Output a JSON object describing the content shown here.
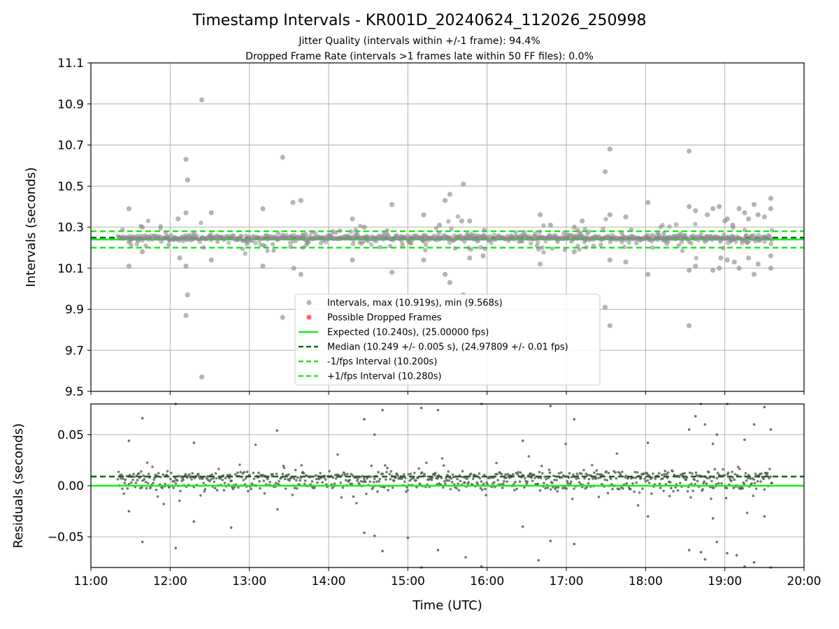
{
  "title": "Timestamp Intervals - KR001D_20240624_112026_250998",
  "subtitle_1": "Jitter Quality (intervals within +/-1 frame): 94.4%",
  "subtitle_2": "Dropped Frame Rate (intervals >1 frames late within 50 FF files): 0.0%",
  "colors": {
    "scatter": "#8c8c8c",
    "dropped": "#ff4040",
    "expected": "#1aeb1a",
    "median": "#0a6b0a",
    "bounds": "#1aeb1a",
    "grid": "#b0b0b0"
  },
  "chart_data": [
    {
      "type": "scatter",
      "ylabel": "Intervals (seconds)",
      "xlabel": "",
      "xlim": [
        11.0,
        20.0
      ],
      "ylim": [
        9.5,
        11.1
      ],
      "yticks": [
        "9.5",
        "9.7",
        "9.9",
        "10.1",
        "10.3",
        "10.5",
        "10.7",
        "10.9",
        "11.1"
      ],
      "grid": true,
      "legend_position": "bottom-center",
      "legend": [
        {
          "label": "Intervals, max (10.919s), min (9.568s)",
          "kind": "marker",
          "color": "#8c8c8c"
        },
        {
          "label": "Possible Dropped Frames",
          "kind": "marker",
          "color": "#ff4040"
        },
        {
          "label": "Expected (10.240s), (25.00000 fps)",
          "kind": "solid",
          "color": "#1aeb1a"
        },
        {
          "label": "Median (10.249 +/- 0.005 s), (24.97809 +/- 0.01 fps)",
          "kind": "dashed",
          "color": "#0a6b0a"
        },
        {
          "label": "-1/fps Interval (10.200s)",
          "kind": "dashed",
          "color": "#1aeb1a"
        },
        {
          "label": "+1/fps Interval (10.280s)",
          "kind": "dashed",
          "color": "#1aeb1a"
        }
      ],
      "reference_lines": {
        "expected": 10.24,
        "median": 10.249,
        "minus_bound": 10.2,
        "plus_bound": 10.28
      },
      "data_range": {
        "start": 11.34,
        "end": 19.6
      },
      "outliers": [
        [
          11.48,
          10.39
        ],
        [
          11.48,
          10.11
        ],
        [
          11.65,
          10.3
        ],
        [
          11.65,
          10.18
        ],
        [
          12.1,
          10.34
        ],
        [
          12.12,
          10.15
        ],
        [
          12.2,
          10.37
        ],
        [
          12.2,
          10.63
        ],
        [
          12.22,
          10.53
        ],
        [
          12.22,
          9.97
        ],
        [
          12.2,
          9.87
        ],
        [
          12.2,
          10.11
        ],
        [
          12.3,
          10.27
        ],
        [
          12.4,
          10.92
        ],
        [
          12.4,
          9.57
        ],
        [
          12.52,
          10.37
        ],
        [
          12.52,
          10.14
        ],
        [
          13.17,
          10.39
        ],
        [
          13.17,
          10.11
        ],
        [
          13.42,
          10.64
        ],
        [
          13.42,
          9.86
        ],
        [
          13.55,
          10.42
        ],
        [
          13.56,
          10.1
        ],
        [
          13.65,
          10.43
        ],
        [
          13.65,
          10.07
        ],
        [
          14.3,
          10.34
        ],
        [
          14.3,
          10.14
        ],
        [
          14.45,
          10.3
        ],
        [
          14.8,
          10.41
        ],
        [
          14.8,
          10.08
        ],
        [
          15.2,
          10.36
        ],
        [
          15.2,
          10.14
        ],
        [
          15.4,
          10.31
        ],
        [
          15.47,
          10.43
        ],
        [
          15.47,
          10.07
        ],
        [
          15.53,
          10.46
        ],
        [
          15.53,
          10.03
        ],
        [
          15.7,
          10.51
        ],
        [
          15.7,
          9.97
        ],
        [
          15.68,
          10.33
        ],
        [
          15.78,
          10.33
        ],
        [
          15.78,
          10.15
        ],
        [
          15.95,
          10.16
        ],
        [
          16.67,
          10.36
        ],
        [
          16.67,
          10.12
        ],
        [
          16.8,
          10.31
        ],
        [
          17.1,
          10.3
        ],
        [
          17.1,
          10.18
        ],
        [
          17.2,
          10.33
        ],
        [
          17.49,
          10.57
        ],
        [
          17.49,
          9.91
        ],
        [
          17.55,
          10.68
        ],
        [
          17.55,
          9.82
        ],
        [
          17.55,
          10.36
        ],
        [
          17.55,
          10.14
        ],
        [
          17.75,
          10.35
        ],
        [
          17.75,
          10.13
        ],
        [
          18.03,
          10.42
        ],
        [
          18.03,
          10.07
        ],
        [
          18.55,
          10.67
        ],
        [
          18.55,
          9.82
        ],
        [
          18.55,
          10.4
        ],
        [
          18.55,
          10.09
        ],
        [
          18.63,
          10.38
        ],
        [
          18.63,
          10.11
        ],
        [
          18.78,
          10.36
        ],
        [
          18.85,
          10.39
        ],
        [
          18.85,
          10.09
        ],
        [
          18.93,
          10.4
        ],
        [
          18.93,
          10.1
        ],
        [
          19.03,
          10.34
        ],
        [
          19.03,
          10.14
        ],
        [
          19.1,
          10.31
        ],
        [
          19.18,
          10.39
        ],
        [
          19.18,
          10.1
        ],
        [
          19.25,
          10.37
        ],
        [
          19.3,
          10.34
        ],
        [
          19.3,
          10.15
        ],
        [
          19.37,
          10.41
        ],
        [
          19.37,
          10.07
        ],
        [
          19.42,
          10.36
        ],
        [
          19.42,
          10.12
        ],
        [
          19.5,
          10.35
        ],
        [
          19.58,
          10.44
        ],
        [
          19.58,
          10.1
        ],
        [
          19.58,
          10.39
        ],
        [
          19.58,
          10.16
        ],
        [
          18.95,
          10.15
        ],
        [
          19.12,
          10.13
        ],
        [
          19.0,
          10.33
        ]
      ]
    },
    {
      "type": "scatter",
      "ylabel": "Residuals (seconds)",
      "xlabel": "Time (UTC)",
      "xlim": [
        11.0,
        20.0
      ],
      "ylim": [
        -0.08,
        0.08
      ],
      "xticks": [
        "11:00",
        "12:00",
        "13:00",
        "14:00",
        "15:00",
        "16:00",
        "17:00",
        "18:00",
        "19:00",
        "20:00"
      ],
      "yticks": [
        "−0.05",
        "0.00",
        "0.05"
      ],
      "grid": true,
      "reference_lines": {
        "zero": 0.0,
        "median_offset": 0.009
      },
      "outliers": [
        [
          11.48,
          0.044
        ],
        [
          11.48,
          -0.025
        ],
        [
          11.65,
          0.066
        ],
        [
          11.65,
          -0.055
        ],
        [
          12.07,
          0.08
        ],
        [
          12.07,
          -0.061
        ],
        [
          12.3,
          0.042
        ],
        [
          12.3,
          -0.035
        ],
        [
          12.77,
          -0.041
        ],
        [
          13.35,
          0.054
        ],
        [
          14.45,
          0.065
        ],
        [
          14.45,
          -0.046
        ],
        [
          14.58,
          0.05
        ],
        [
          14.58,
          -0.049
        ],
        [
          14.68,
          0.074
        ],
        [
          14.68,
          -0.064
        ],
        [
          15.0,
          -0.051
        ],
        [
          15.17,
          0.076
        ],
        [
          15.17,
          -0.08
        ],
        [
          15.38,
          0.074
        ],
        [
          15.38,
          -0.063
        ],
        [
          15.73,
          -0.07
        ],
        [
          15.93,
          0.08
        ],
        [
          15.93,
          -0.079
        ],
        [
          16.45,
          0.044
        ],
        [
          16.45,
          -0.04
        ],
        [
          16.65,
          -0.073
        ],
        [
          16.8,
          0.078
        ],
        [
          16.8,
          -0.054
        ],
        [
          17.1,
          0.065
        ],
        [
          17.1,
          -0.057
        ],
        [
          18.03,
          0.042
        ],
        [
          18.03,
          -0.03
        ],
        [
          18.55,
          0.055
        ],
        [
          18.55,
          -0.063
        ],
        [
          18.63,
          0.068
        ],
        [
          18.7,
          0.08
        ],
        [
          18.7,
          -0.065
        ],
        [
          18.75,
          0.06
        ],
        [
          18.75,
          -0.072
        ],
        [
          18.85,
          0.041
        ],
        [
          18.85,
          -0.032
        ],
        [
          18.9,
          0.05
        ],
        [
          18.9,
          -0.055
        ],
        [
          19.03,
          0.08
        ],
        [
          19.03,
          -0.066
        ],
        [
          19.15,
          -0.068
        ],
        [
          19.25,
          0.045
        ],
        [
          19.25,
          -0.079
        ],
        [
          19.37,
          0.06
        ],
        [
          19.37,
          -0.075
        ],
        [
          19.5,
          0.077
        ],
        [
          19.5,
          -0.03
        ],
        [
          19.58,
          -0.08
        ],
        [
          19.58,
          0.055
        ]
      ]
    }
  ]
}
